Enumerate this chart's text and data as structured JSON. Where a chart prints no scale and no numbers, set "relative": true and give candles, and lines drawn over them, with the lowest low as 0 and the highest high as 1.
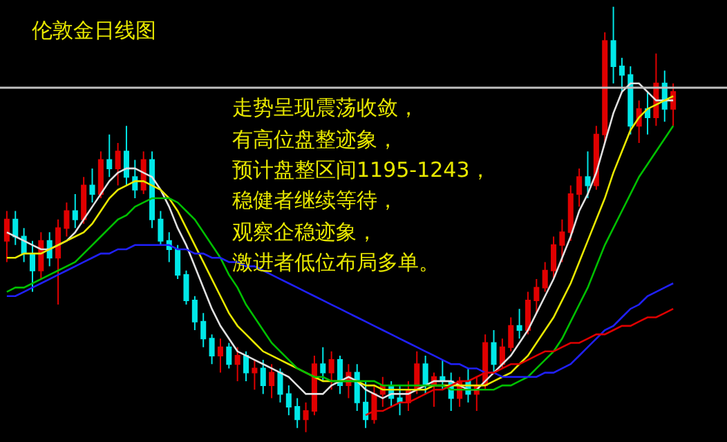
{
  "chart_data": {
    "type": "candlestick",
    "title": "伦敦金日线图",
    "relative": true,
    "grid": false,
    "categories": [
      null,
      null,
      null,
      null,
      null,
      null,
      null,
      null,
      null,
      null,
      null,
      null,
      null,
      null,
      null,
      null,
      null,
      null,
      null,
      null,
      null,
      null,
      null,
      null,
      null,
      null,
      null,
      null,
      null,
      null,
      null,
      null,
      null,
      null,
      null,
      null,
      null,
      null,
      null,
      null,
      null,
      null,
      null,
      null,
      null,
      null,
      null,
      null,
      null,
      null,
      null,
      null,
      null,
      null,
      null,
      null,
      null,
      null,
      null,
      null,
      null,
      null,
      null,
      null,
      null,
      null,
      null,
      null,
      null,
      null,
      null,
      null,
      null,
      null,
      null,
      null,
      null,
      null,
      null
    ],
    "colors": [
      "#e00000",
      "#00e8e8",
      "#00e8e8",
      "#00e8e8",
      "#e00000",
      "#00e8e8",
      "#e00000",
      "#e00000",
      "#00e8e8",
      "#e00000",
      "#00e8e8",
      "#e00000",
      "#00e8e8",
      "#e00000",
      "#00e8e8",
      "#00e8e8",
      "#e00000",
      "#00e8e8",
      "#00e8e8",
      "#00e8e8",
      "#00e8e8",
      "#00e8e8",
      "#00e8e8",
      "#00e8e8",
      "#00e8e8",
      "#e00000",
      "#00e8e8",
      "#e00000",
      "#00e8e8",
      "#e00000",
      "#00e8e8",
      "#e00000",
      "#00e8e8",
      "#00e8e8",
      "#00e8e8",
      "#e00000",
      "#e00000",
      "#00e8e8",
      "#e00000",
      "#00e8e8",
      "#e00000",
      "#00e8e8",
      "#00e8e8",
      "#e00000",
      "#e00000",
      "#00e8e8",
      "#00e8e8",
      "#e00000",
      "#e00000",
      "#00e8e8",
      "#e00000",
      "#00e8e8",
      "#00e8e8",
      "#e00000",
      "#00e8e8",
      "#e00000",
      "#e00000",
      "#00e8e8",
      "#e00000",
      "#e00000",
      "#00e8e8",
      "#e00000",
      "#e00000",
      "#e00000",
      "#e00000",
      "#e00000",
      "#e00000",
      "#e00000",
      "#00e8e8",
      "#e00000",
      "#e00000",
      "#00e8e8",
      "#00e8e8",
      "#00e8e8",
      "#e00000",
      "#00e8e8",
      "#e00000",
      "#00e8e8",
      "#e00000"
    ],
    "ohlc": [
      [
        0.45,
        0.52,
        0.4,
        0.5
      ],
      [
        0.5,
        0.52,
        0.44,
        0.46
      ],
      [
        0.46,
        0.48,
        0.4,
        0.42
      ],
      [
        0.42,
        0.45,
        0.33,
        0.38
      ],
      [
        0.38,
        0.47,
        0.36,
        0.45
      ],
      [
        0.45,
        0.47,
        0.39,
        0.41
      ],
      [
        0.41,
        0.5,
        0.3,
        0.48
      ],
      [
        0.48,
        0.54,
        0.46,
        0.52
      ],
      [
        0.52,
        0.56,
        0.48,
        0.5
      ],
      [
        0.5,
        0.6,
        0.49,
        0.58
      ],
      [
        0.58,
        0.62,
        0.54,
        0.56
      ],
      [
        0.56,
        0.66,
        0.55,
        0.64
      ],
      [
        0.64,
        0.7,
        0.6,
        0.62
      ],
      [
        0.62,
        0.68,
        0.58,
        0.66
      ],
      [
        0.66,
        0.72,
        0.58,
        0.6
      ],
      [
        0.6,
        0.64,
        0.55,
        0.57
      ],
      [
        0.57,
        0.66,
        0.56,
        0.64
      ],
      [
        0.64,
        0.66,
        0.48,
        0.5
      ],
      [
        0.5,
        0.52,
        0.44,
        0.45
      ],
      [
        0.45,
        0.47,
        0.4,
        0.43
      ],
      [
        0.43,
        0.44,
        0.36,
        0.37
      ],
      [
        0.37,
        0.38,
        0.3,
        0.31
      ],
      [
        0.31,
        0.32,
        0.24,
        0.26
      ],
      [
        0.26,
        0.28,
        0.2,
        0.22
      ],
      [
        0.22,
        0.23,
        0.16,
        0.18
      ],
      [
        0.18,
        0.22,
        0.14,
        0.2
      ],
      [
        0.2,
        0.21,
        0.15,
        0.16
      ],
      [
        0.16,
        0.2,
        0.12,
        0.18
      ],
      [
        0.18,
        0.19,
        0.12,
        0.14
      ],
      [
        0.14,
        0.17,
        0.1,
        0.15
      ],
      [
        0.15,
        0.17,
        0.09,
        0.11
      ],
      [
        0.11,
        0.16,
        0.08,
        0.14
      ],
      [
        0.14,
        0.15,
        0.07,
        0.09
      ],
      [
        0.09,
        0.11,
        0.04,
        0.06
      ],
      [
        0.06,
        0.08,
        0.01,
        0.03
      ],
      [
        0.03,
        0.07,
        0,
        0.05
      ],
      [
        0.05,
        0.18,
        0.04,
        0.16
      ],
      [
        0.16,
        0.2,
        0.12,
        0.14
      ],
      [
        0.14,
        0.19,
        0.1,
        0.17
      ],
      [
        0.17,
        0.18,
        0.09,
        0.11
      ],
      [
        0.11,
        0.16,
        0.08,
        0.14
      ],
      [
        0.14,
        0.16,
        0.05,
        0.07
      ],
      [
        0.07,
        0.12,
        0.01,
        0.03
      ],
      [
        0.03,
        0.11,
        0.02,
        0.09
      ],
      [
        0.09,
        0.13,
        0.06,
        0.11
      ],
      [
        0.11,
        0.12,
        0.06,
        0.08
      ],
      [
        0.08,
        0.11,
        0.04,
        0.07
      ],
      [
        0.07,
        0.12,
        0.05,
        0.1
      ],
      [
        0.1,
        0.19,
        0.09,
        0.16
      ],
      [
        0.16,
        0.18,
        0.09,
        0.11
      ],
      [
        0.11,
        0.14,
        0.06,
        0.13
      ],
      [
        0.13,
        0.17,
        0.1,
        0.12
      ],
      [
        0.12,
        0.14,
        0.05,
        0.08
      ],
      [
        0.08,
        0.13,
        0.06,
        0.12
      ],
      [
        0.12,
        0.15,
        0.07,
        0.09
      ],
      [
        0.09,
        0.13,
        0.05,
        0.11
      ],
      [
        0.11,
        0.23,
        0.1,
        0.21
      ],
      [
        0.21,
        0.24,
        0.14,
        0.16
      ],
      [
        0.16,
        0.22,
        0.15,
        0.2
      ],
      [
        0.2,
        0.27,
        0.19,
        0.25
      ],
      [
        0.25,
        0.29,
        0.22,
        0.24
      ],
      [
        0.24,
        0.33,
        0.23,
        0.31
      ],
      [
        0.31,
        0.36,
        0.28,
        0.34
      ],
      [
        0.34,
        0.4,
        0.33,
        0.38
      ],
      [
        0.38,
        0.46,
        0.36,
        0.44
      ],
      [
        0.44,
        0.5,
        0.4,
        0.47
      ],
      [
        0.47,
        0.58,
        0.45,
        0.56
      ],
      [
        0.56,
        0.62,
        0.53,
        0.6
      ],
      [
        0.6,
        0.66,
        0.55,
        0.58
      ],
      [
        0.58,
        0.72,
        0.57,
        0.7
      ],
      [
        0.7,
        0.94,
        0.68,
        0.92
      ],
      [
        0.92,
        1.0,
        0.82,
        0.86
      ],
      [
        0.86,
        0.88,
        0.8,
        0.84
      ],
      [
        0.84,
        0.86,
        0.7,
        0.72
      ],
      [
        0.72,
        0.78,
        0.68,
        0.76
      ],
      [
        0.76,
        0.8,
        0.7,
        0.74
      ],
      [
        0.74,
        0.89,
        0.72,
        0.82
      ],
      [
        0.82,
        0.85,
        0.73,
        0.76
      ],
      [
        0.76,
        0.82,
        0.72,
        0.8
      ]
    ],
    "series": [
      {
        "type": "line",
        "color": "#e0e0e0",
        "values": [
          0.47,
          0.46,
          0.45,
          0.44,
          0.43,
          0.43,
          0.44,
          0.45,
          0.47,
          0.5,
          0.53,
          0.56,
          0.59,
          0.61,
          0.62,
          0.62,
          0.61,
          0.6,
          0.57,
          0.53,
          0.48,
          0.44,
          0.39,
          0.34,
          0.29,
          0.25,
          0.22,
          0.19,
          0.18,
          0.17,
          0.16,
          0.15,
          0.14,
          0.13,
          0.11,
          0.09,
          0.09,
          0.09,
          0.11,
          0.12,
          0.13,
          0.12,
          0.1,
          0.09,
          0.08,
          0.09,
          0.09,
          0.09,
          0.1,
          0.11,
          0.12,
          0.12,
          0.12,
          0.11,
          0.1,
          0.1,
          0.12,
          0.14,
          0.16,
          0.18,
          0.21,
          0.24,
          0.28,
          0.32,
          0.36,
          0.41,
          0.46,
          0.52,
          0.56,
          0.61,
          0.68,
          0.75,
          0.8,
          0.82,
          0.82,
          0.8,
          0.78,
          0.78,
          0.78
        ]
      },
      {
        "type": "line",
        "color": "#e8e800",
        "values": [
          0.41,
          0.41,
          0.42,
          0.42,
          0.42,
          0.43,
          0.44,
          0.45,
          0.46,
          0.47,
          0.49,
          0.52,
          0.55,
          0.57,
          0.58,
          0.59,
          0.59,
          0.58,
          0.57,
          0.55,
          0.52,
          0.48,
          0.44,
          0.4,
          0.36,
          0.32,
          0.28,
          0.25,
          0.23,
          0.21,
          0.19,
          0.18,
          0.17,
          0.16,
          0.15,
          0.14,
          0.13,
          0.12,
          0.12,
          0.12,
          0.12,
          0.12,
          0.11,
          0.11,
          0.1,
          0.1,
          0.1,
          0.1,
          0.1,
          0.1,
          0.11,
          0.11,
          0.11,
          0.11,
          0.11,
          0.11,
          0.11,
          0.12,
          0.13,
          0.14,
          0.16,
          0.18,
          0.21,
          0.24,
          0.27,
          0.31,
          0.35,
          0.4,
          0.45,
          0.5,
          0.55,
          0.61,
          0.66,
          0.71,
          0.74,
          0.76,
          0.77,
          0.78,
          0.79
        ]
      },
      {
        "type": "line",
        "color": "#00c000",
        "values": [
          0.33,
          0.34,
          0.34,
          0.35,
          0.36,
          0.37,
          0.38,
          0.39,
          0.4,
          0.42,
          0.44,
          0.46,
          0.48,
          0.5,
          0.51,
          0.53,
          0.54,
          0.55,
          0.55,
          0.55,
          0.54,
          0.52,
          0.5,
          0.47,
          0.44,
          0.41,
          0.37,
          0.34,
          0.3,
          0.27,
          0.24,
          0.21,
          0.19,
          0.17,
          0.15,
          0.14,
          0.13,
          0.13,
          0.12,
          0.12,
          0.12,
          0.12,
          0.12,
          0.12,
          0.11,
          0.11,
          0.11,
          0.11,
          0.11,
          0.11,
          0.11,
          0.11,
          0.1,
          0.1,
          0.1,
          0.1,
          0.1,
          0.1,
          0.11,
          0.11,
          0.12,
          0.13,
          0.15,
          0.17,
          0.19,
          0.22,
          0.26,
          0.3,
          0.34,
          0.39,
          0.44,
          0.48,
          0.52,
          0.56,
          0.6,
          0.63,
          0.66,
          0.69,
          0.72
        ]
      },
      {
        "type": "line",
        "color": "#2020ff",
        "values": [
          0.32,
          0.32,
          0.33,
          0.34,
          0.35,
          0.36,
          0.37,
          0.38,
          0.39,
          0.4,
          0.41,
          0.42,
          0.42,
          0.43,
          0.43,
          0.44,
          0.44,
          0.44,
          0.44,
          0.44,
          0.43,
          0.43,
          0.42,
          0.42,
          0.41,
          0.41,
          0.4,
          0.4,
          0.39,
          0.39,
          0.38,
          0.37,
          0.36,
          0.35,
          0.34,
          0.33,
          0.32,
          0.31,
          0.3,
          0.29,
          0.28,
          0.27,
          0.26,
          0.25,
          0.24,
          0.23,
          0.22,
          0.21,
          0.2,
          0.19,
          0.18,
          0.17,
          0.16,
          0.16,
          0.15,
          0.15,
          0.14,
          0.14,
          0.13,
          0.13,
          0.13,
          0.13,
          0.13,
          0.14,
          0.14,
          0.15,
          0.16,
          0.18,
          0.2,
          0.22,
          0.24,
          0.25,
          0.27,
          0.29,
          0.3,
          0.32,
          0.33,
          0.34,
          0.35
        ]
      },
      {
        "type": "line",
        "color": "#e00000",
        "values": [
          null,
          null,
          null,
          null,
          null,
          null,
          null,
          null,
          null,
          null,
          null,
          null,
          null,
          null,
          null,
          null,
          null,
          null,
          null,
          null,
          null,
          null,
          null,
          null,
          null,
          null,
          null,
          null,
          null,
          null,
          null,
          null,
          null,
          null,
          null,
          null,
          null,
          null,
          null,
          null,
          null,
          null,
          0.04,
          0.05,
          0.05,
          0.06,
          0.07,
          0.07,
          0.08,
          0.09,
          0.1,
          0.1,
          0.11,
          0.12,
          0.12,
          0.13,
          0.14,
          0.14,
          0.15,
          0.16,
          0.16,
          0.17,
          0.18,
          0.19,
          0.19,
          0.2,
          0.21,
          0.21,
          0.22,
          0.23,
          0.23,
          0.24,
          0.25,
          0.25,
          0.26,
          0.27,
          0.27,
          0.28,
          0.29
        ]
      }
    ],
    "ref_lines": [
      {
        "axis": "y",
        "value": 0.81,
        "color": "#c0c0c0"
      }
    ],
    "annotations": [
      "走势呈现震荡收敛，",
      "有高位盘整迹象，",
      "预计盘整区间1195-1243，",
      "稳健者继续等待，",
      "观察企稳迹象，",
      "激进者低位布局多单。"
    ]
  }
}
